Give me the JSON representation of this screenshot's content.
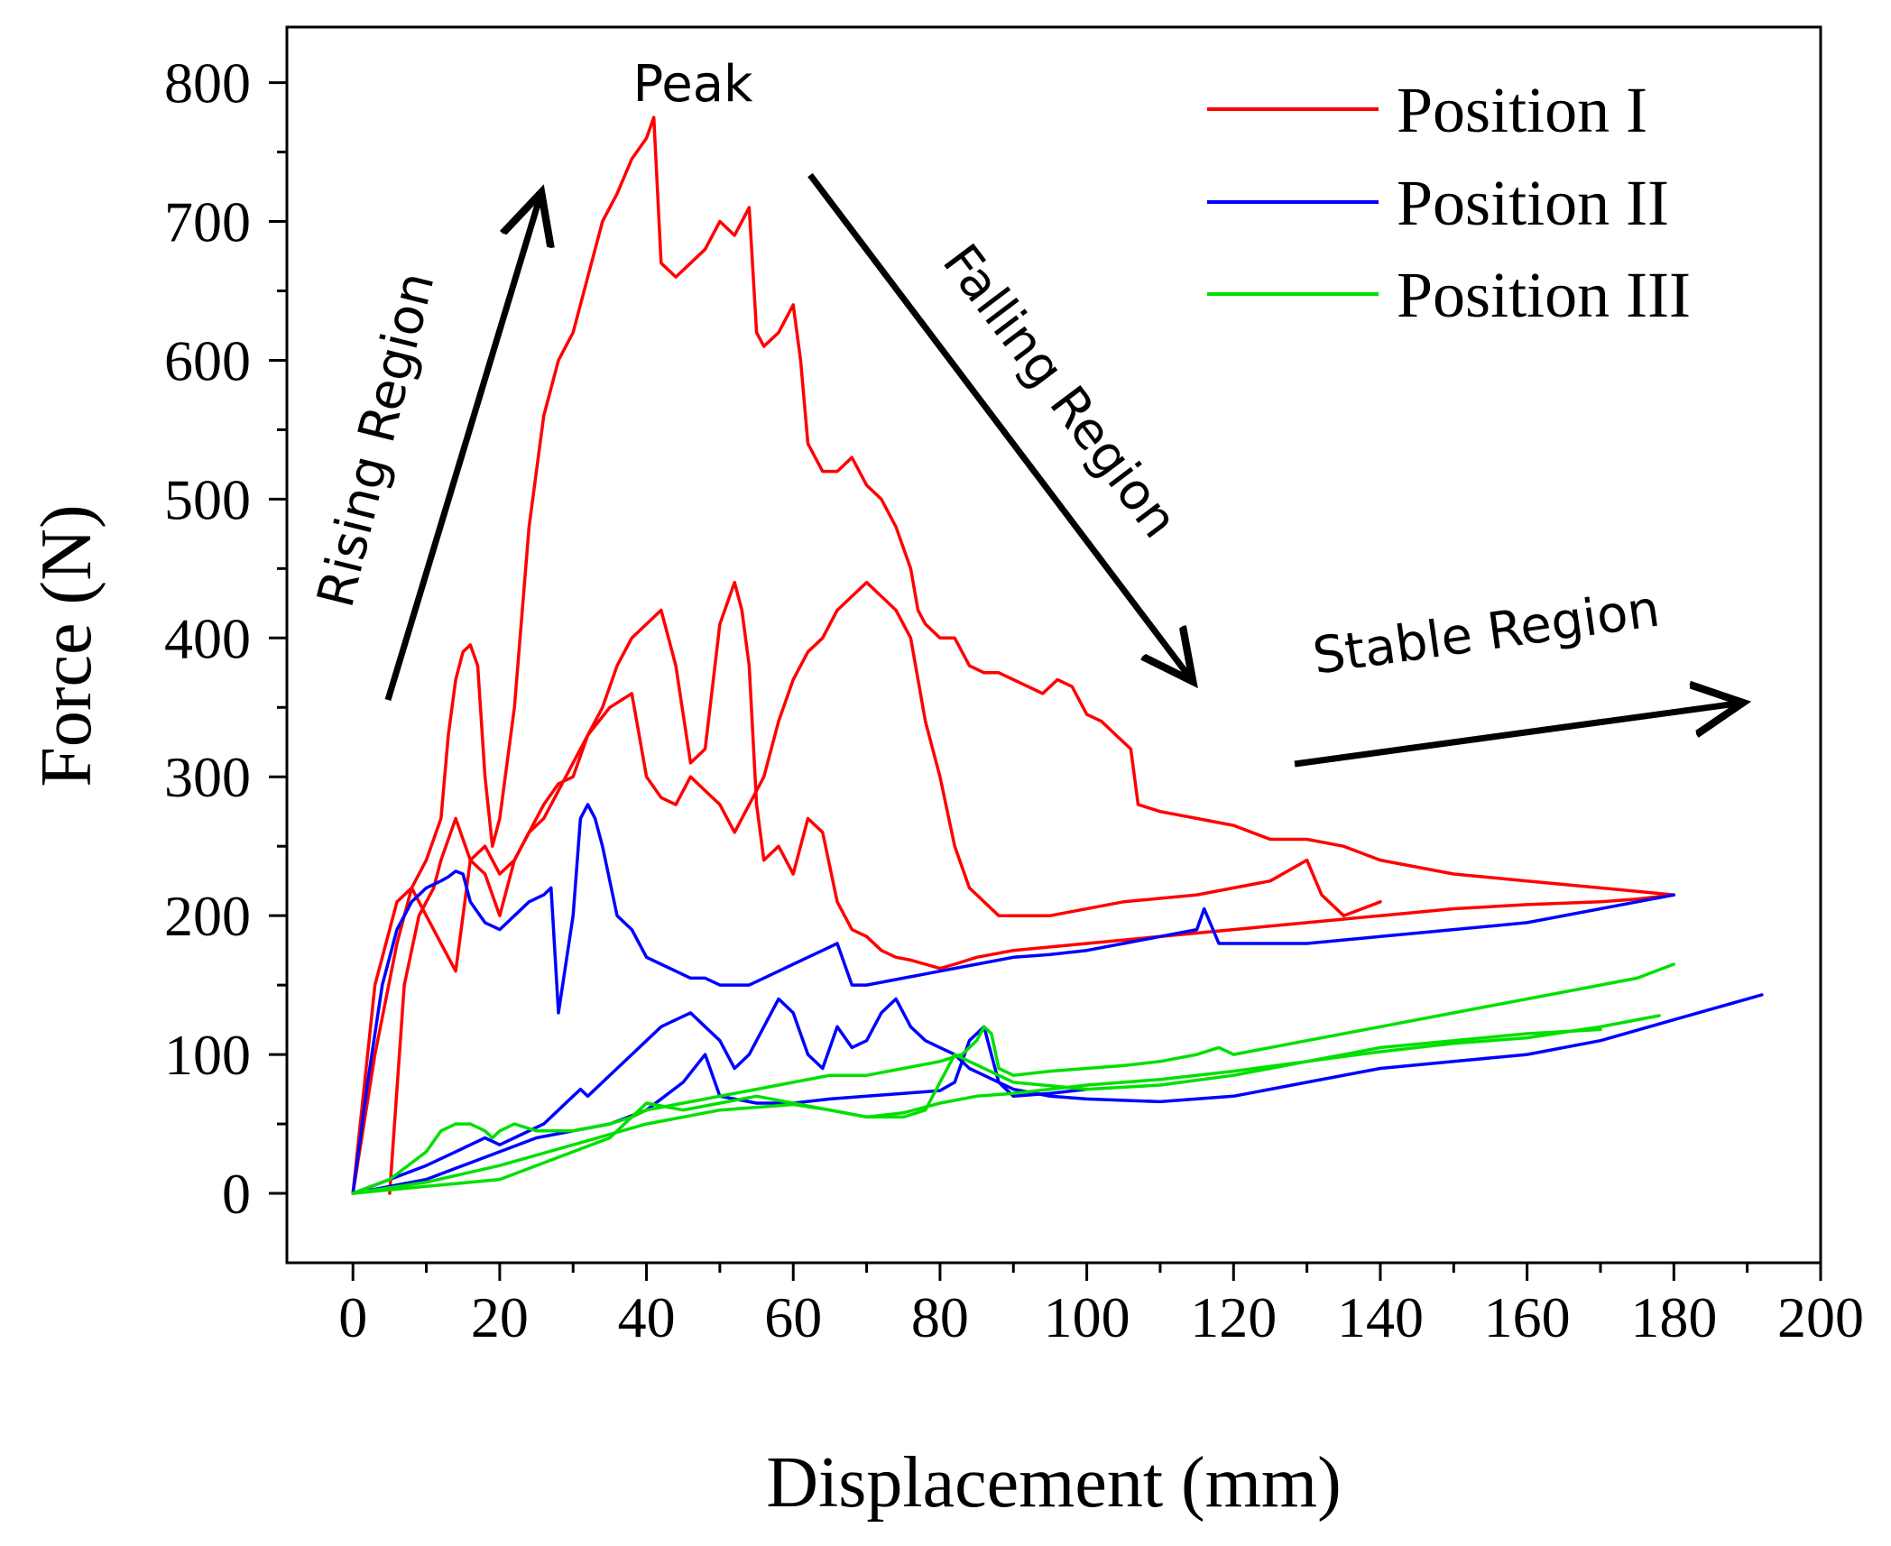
{
  "chart_data": {
    "type": "line",
    "title": "",
    "xlabel": "Displacement (mm)",
    "ylabel": "Force (N)",
    "xlim": [
      -9,
      200
    ],
    "ylim": [
      -50,
      840
    ],
    "xticks": [
      0,
      20,
      40,
      60,
      80,
      100,
      120,
      140,
      160,
      180,
      200
    ],
    "yticks": [
      0,
      100,
      200,
      300,
      400,
      500,
      600,
      700,
      800
    ],
    "grid": false,
    "legend": {
      "position": "top-right",
      "entries": [
        {
          "name": "Position I",
          "color": "#ff0000"
        },
        {
          "name": "Position II",
          "color": "#0000ff"
        },
        {
          "name": "Position III",
          "color": "#00e000"
        }
      ]
    },
    "annotations": {
      "peak": "Peak",
      "rising": "Rising Region",
      "falling": "Falling Region",
      "stable": "Stable Region"
    },
    "series": [
      {
        "name": "Position I",
        "color": "#ff0000",
        "x": [
          0,
          3,
          6,
          8,
          10,
          12,
          13,
          14,
          15,
          16,
          17,
          18,
          19,
          20,
          22,
          24,
          26,
          28,
          30,
          32,
          34,
          36,
          38,
          40,
          41,
          42,
          44,
          46,
          48,
          50,
          52,
          53,
          54,
          55,
          56,
          58,
          60,
          61,
          62,
          63,
          64,
          66,
          68,
          70,
          72,
          74,
          76,
          77,
          78,
          80,
          82,
          84,
          86,
          88,
          90,
          92,
          94,
          96,
          98,
          100,
          102,
          104,
          106,
          107,
          110,
          115,
          120,
          125,
          130,
          135,
          140,
          150,
          160,
          170,
          180
        ],
        "y": [
          0,
          100,
          180,
          220,
          240,
          270,
          330,
          370,
          390,
          395,
          380,
          300,
          250,
          270,
          350,
          480,
          560,
          600,
          620,
          660,
          700,
          720,
          745,
          760,
          775,
          670,
          660,
          670,
          680,
          700,
          690,
          700,
          710,
          620,
          610,
          620,
          640,
          600,
          540,
          530,
          520,
          520,
          530,
          510,
          500,
          480,
          450,
          420,
          410,
          400,
          400,
          380,
          375,
          375,
          370,
          365,
          360,
          370,
          365,
          345,
          340,
          330,
          320,
          280,
          275,
          270,
          265,
          255,
          255,
          250,
          240,
          230,
          225,
          220,
          215
        ]
      },
      {
        "name": "Position I",
        "color": "#ff0000",
        "x": [
          0,
          3,
          6,
          8,
          10,
          12,
          14,
          16,
          18,
          20,
          22,
          24,
          26,
          28,
          30,
          32,
          34,
          36,
          38,
          40,
          42,
          44,
          46,
          48,
          50,
          52,
          53,
          54,
          55,
          56,
          58,
          60,
          62,
          64,
          66,
          68,
          70,
          72,
          74,
          76,
          78,
          80,
          82,
          85,
          90,
          100,
          110,
          120,
          130,
          140,
          150,
          160,
          170,
          175,
          180
        ],
        "y": [
          0,
          150,
          210,
          220,
          200,
          180,
          160,
          240,
          230,
          200,
          240,
          260,
          280,
          295,
          300,
          330,
          350,
          380,
          400,
          410,
          420,
          380,
          310,
          320,
          410,
          440,
          420,
          380,
          280,
          240,
          250,
          230,
          270,
          260,
          210,
          190,
          185,
          175,
          170,
          168,
          165,
          162,
          165,
          170,
          175,
          180,
          185,
          190,
          195,
          200,
          205,
          208,
          210,
          212,
          215
        ]
      },
      {
        "name": "Position I",
        "color": "#ff0000",
        "x": [
          5,
          7,
          9,
          11,
          12,
          14,
          16,
          18,
          20,
          22,
          24,
          26,
          28,
          30,
          32,
          35,
          38,
          40,
          42,
          44,
          46,
          48,
          50,
          52,
          54,
          56,
          58,
          60,
          62,
          64,
          66,
          68,
          70,
          72,
          74,
          76,
          78,
          80,
          82,
          84,
          88,
          95,
          105,
          115,
          125,
          130,
          132,
          135,
          140
        ],
        "y": [
          0,
          150,
          200,
          220,
          240,
          270,
          240,
          250,
          230,
          240,
          260,
          270,
          290,
          310,
          330,
          350,
          360,
          300,
          285,
          280,
          300,
          290,
          280,
          260,
          280,
          300,
          340,
          370,
          390,
          400,
          420,
          430,
          440,
          430,
          420,
          400,
          340,
          300,
          250,
          220,
          200,
          200,
          210,
          215,
          225,
          240,
          215,
          200,
          210
        ]
      },
      {
        "name": "Position II",
        "color": "#0000ff",
        "x": [
          0,
          2,
          4,
          6,
          8,
          10,
          12,
          13,
          14,
          15,
          16,
          18,
          20,
          22,
          24,
          26,
          27,
          28,
          30,
          31,
          32,
          33,
          34,
          36,
          38,
          40,
          42,
          44,
          46,
          48,
          50,
          52,
          54,
          56,
          58,
          60,
          62,
          64,
          66,
          68,
          70,
          75,
          80,
          85,
          90,
          95,
          100,
          105,
          110,
          115,
          116,
          118,
          120,
          125,
          130,
          140,
          150,
          160,
          170,
          175,
          180
        ],
        "y": [
          0,
          80,
          150,
          190,
          210,
          220,
          225,
          228,
          232,
          230,
          210,
          195,
          190,
          200,
          210,
          215,
          220,
          130,
          200,
          270,
          280,
          270,
          250,
          200,
          190,
          170,
          165,
          160,
          155,
          155,
          150,
          150,
          150,
          155,
          160,
          165,
          170,
          175,
          180,
          150,
          150,
          155,
          160,
          165,
          170,
          172,
          175,
          180,
          185,
          190,
          205,
          180,
          180,
          180,
          180,
          185,
          190,
          195,
          205,
          210,
          215
        ]
      },
      {
        "name": "Position II",
        "color": "#0000ff",
        "x": [
          0,
          5,
          10,
          14,
          18,
          20,
          22,
          26,
          28,
          30,
          31,
          32,
          34,
          36,
          38,
          40,
          42,
          44,
          46,
          48,
          50,
          52,
          54,
          56,
          58,
          60,
          62,
          64,
          66,
          68,
          70,
          72,
          74,
          76,
          78,
          80,
          82,
          84,
          86,
          88,
          90,
          95,
          100,
          110,
          120,
          130,
          140,
          150,
          160,
          170,
          180,
          192
        ],
        "y": [
          0,
          10,
          20,
          30,
          40,
          35,
          40,
          50,
          60,
          70,
          75,
          70,
          80,
          90,
          100,
          110,
          120,
          125,
          130,
          120,
          110,
          90,
          100,
          120,
          140,
          130,
          100,
          90,
          120,
          105,
          110,
          130,
          140,
          120,
          110,
          105,
          100,
          90,
          85,
          80,
          75,
          70,
          68,
          66,
          70,
          80,
          90,
          95,
          100,
          110,
          125,
          143
        ]
      },
      {
        "name": "Position II",
        "color": "#0000ff",
        "x": [
          0,
          5,
          10,
          15,
          20,
          25,
          30,
          35,
          40,
          45,
          48,
          50,
          52,
          55,
          60,
          65,
          70,
          75,
          80,
          82,
          84,
          86,
          88,
          90,
          95,
          100
        ],
        "y": [
          0,
          5,
          10,
          20,
          30,
          40,
          45,
          50,
          60,
          80,
          100,
          70,
          68,
          65,
          65,
          68,
          70,
          72,
          74,
          80,
          110,
          120,
          80,
          70,
          72,
          75
        ]
      },
      {
        "name": "Position III",
        "color": "#00e000",
        "x": [
          0,
          5,
          10,
          12,
          14,
          16,
          18,
          19,
          20,
          22,
          25,
          30,
          35,
          38,
          40,
          45,
          50,
          55,
          60,
          65,
          70,
          75,
          80,
          83,
          85,
          86,
          87,
          88,
          90,
          95,
          100,
          105,
          110,
          115,
          118,
          120,
          130,
          140,
          150,
          160,
          170,
          175,
          180
        ],
        "y": [
          0,
          10,
          30,
          45,
          50,
          50,
          45,
          40,
          45,
          50,
          45,
          45,
          50,
          55,
          60,
          65,
          70,
          75,
          80,
          85,
          85,
          90,
          95,
          100,
          110,
          120,
          115,
          90,
          85,
          88,
          90,
          92,
          95,
          100,
          105,
          100,
          110,
          120,
          130,
          140,
          150,
          155,
          165
        ]
      },
      {
        "name": "Position III",
        "color": "#00e000",
        "x": [
          0,
          10,
          20,
          25,
          30,
          35,
          38,
          40,
          45,
          50,
          55,
          60,
          65,
          70,
          75,
          80,
          85,
          90,
          100,
          110,
          120,
          130,
          140,
          150,
          160,
          170,
          178
        ],
        "y": [
          0,
          5,
          10,
          20,
          30,
          40,
          55,
          65,
          60,
          65,
          70,
          65,
          60,
          55,
          58,
          65,
          70,
          72,
          78,
          82,
          88,
          95,
          102,
          108,
          112,
          120,
          128
        ]
      },
      {
        "name": "Position III",
        "color": "#00e000",
        "x": [
          0,
          10,
          20,
          30,
          40,
          50,
          55,
          60,
          65,
          70,
          75,
          78,
          80,
          82,
          90,
          100,
          110,
          120,
          130,
          140,
          150,
          160,
          170
        ],
        "y": [
          0,
          8,
          20,
          35,
          50,
          60,
          62,
          64,
          60,
          55,
          55,
          60,
          80,
          100,
          80,
          75,
          78,
          85,
          95,
          105,
          110,
          115,
          118
        ]
      }
    ]
  }
}
